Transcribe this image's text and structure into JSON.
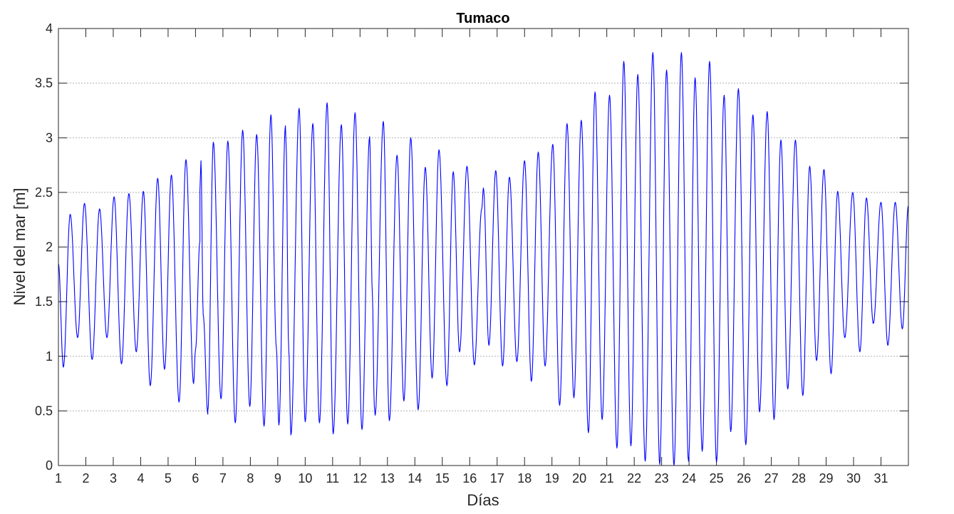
{
  "chart_data": {
    "type": "line",
    "title": "Tumaco",
    "xlabel": "Días",
    "ylabel": "Nivel del mar [m]",
    "xlim": [
      1,
      32
    ],
    "ylim": [
      0,
      4
    ],
    "x_ticks": [
      1,
      2,
      3,
      4,
      5,
      6,
      7,
      8,
      9,
      10,
      11,
      12,
      13,
      14,
      15,
      16,
      17,
      18,
      19,
      20,
      21,
      22,
      23,
      24,
      25,
      26,
      27,
      28,
      29,
      30,
      31
    ],
    "x_tick_labels": [
      "1",
      "2",
      "3",
      "4",
      "5",
      "6",
      "7",
      "8",
      "9",
      "10",
      "11",
      "12",
      "13",
      "14",
      "15",
      "16",
      "17",
      "18",
      "19",
      "20",
      "21",
      "22",
      "23",
      "24",
      "25",
      "26",
      "27",
      "28",
      "29",
      "30",
      "31"
    ],
    "y_ticks": [
      0,
      0.5,
      1,
      1.5,
      2,
      2.5,
      3,
      3.5,
      4
    ],
    "y_tick_labels": [
      "0",
      "0.5",
      "1",
      "1.5",
      "2",
      "2.5",
      "3",
      "3.5",
      "4"
    ],
    "grid": "horizontal-dotted",
    "line_color": "#0000ff",
    "series": [
      {
        "extrema": [
          [
            1.0,
            1.85
          ],
          [
            1.18,
            0.9
          ],
          [
            1.43,
            2.3
          ],
          [
            1.7,
            1.17
          ],
          [
            1.95,
            2.4
          ],
          [
            2.23,
            0.97
          ],
          [
            2.5,
            2.35
          ],
          [
            2.77,
            1.17
          ],
          [
            3.03,
            2.46
          ],
          [
            3.3,
            0.93
          ],
          [
            3.57,
            2.49
          ],
          [
            3.84,
            1.04
          ],
          [
            4.1,
            2.51
          ],
          [
            4.35,
            0.73
          ],
          [
            4.62,
            2.63
          ],
          [
            4.87,
            0.88
          ],
          [
            5.12,
            2.66
          ],
          [
            5.4,
            0.58
          ],
          [
            5.65,
            2.8
          ],
          [
            5.93,
            0.75
          ],
          [
            6.0,
            1.06
          ],
          [
            6.16,
            2.05
          ],
          [
            6.16,
            2.52
          ],
          [
            6.2,
            2.79
          ],
          [
            6.28,
            1.38
          ],
          [
            6.45,
            0.47
          ],
          [
            6.45,
            0.5
          ],
          [
            6.65,
            2.96
          ],
          [
            6.93,
            0.61
          ],
          [
            7.18,
            2.97
          ],
          [
            7.45,
            0.39
          ],
          [
            7.72,
            3.07
          ],
          [
            7.98,
            0.54
          ],
          [
            8.23,
            3.03
          ],
          [
            8.5,
            0.36
          ],
          [
            8.75,
            3.21
          ],
          [
            8.95,
            1.08
          ],
          [
            9.04,
            0.37
          ],
          [
            9.28,
            3.11
          ],
          [
            9.3,
            2.96
          ],
          [
            9.4,
            1.06
          ],
          [
            9.48,
            0.28
          ],
          [
            9.78,
            3.27
          ],
          [
            10.0,
            0.4
          ],
          [
            10.28,
            3.13
          ],
          [
            10.52,
            0.39
          ],
          [
            10.8,
            3.32
          ],
          [
            11.02,
            0.29
          ],
          [
            11.32,
            3.12
          ],
          [
            11.55,
            0.38
          ],
          [
            11.82,
            3.23
          ],
          [
            12.07,
            0.33
          ],
          [
            12.35,
            3.01
          ],
          [
            12.45,
            1.58
          ],
          [
            12.52,
            0.55
          ],
          [
            12.55,
            0.46
          ],
          [
            12.85,
            3.15
          ],
          [
            13.07,
            0.41
          ],
          [
            13.35,
            2.84
          ],
          [
            13.6,
            0.59
          ],
          [
            13.85,
            3.0
          ],
          [
            14.12,
            0.51
          ],
          [
            14.38,
            2.73
          ],
          [
            14.63,
            0.8
          ],
          [
            14.88,
            2.89
          ],
          [
            15.17,
            0.73
          ],
          [
            15.4,
            2.69
          ],
          [
            15.63,
            1.04
          ],
          [
            15.9,
            2.74
          ],
          [
            16.17,
            0.92
          ],
          [
            16.44,
            2.35
          ],
          [
            16.5,
            2.54
          ],
          [
            16.7,
            1.1
          ],
          [
            16.95,
            2.7
          ],
          [
            17.2,
            0.91
          ],
          [
            17.45,
            2.64
          ],
          [
            17.72,
            0.95
          ],
          [
            18.0,
            2.79
          ],
          [
            18.25,
            0.77
          ],
          [
            18.5,
            2.87
          ],
          [
            18.75,
            0.91
          ],
          [
            19.03,
            2.94
          ],
          [
            19.28,
            0.55
          ],
          [
            19.55,
            3.13
          ],
          [
            19.8,
            0.62
          ],
          [
            20.07,
            3.16
          ],
          [
            20.33,
            0.3
          ],
          [
            20.57,
            3.42
          ],
          [
            20.83,
            0.42
          ],
          [
            21.1,
            3.39
          ],
          [
            21.37,
            0.16
          ],
          [
            21.62,
            3.7
          ],
          [
            21.88,
            0.18
          ],
          [
            22.13,
            3.58
          ],
          [
            22.4,
            0.04
          ],
          [
            22.68,
            3.78
          ],
          [
            22.93,
            0.01
          ],
          [
            23.18,
            3.62
          ],
          [
            23.45,
            0.0
          ],
          [
            23.72,
            3.78
          ],
          [
            23.98,
            0.04
          ],
          [
            24.22,
            3.55
          ],
          [
            24.48,
            0.13
          ],
          [
            24.75,
            3.7
          ],
          [
            25.0,
            0.03
          ],
          [
            25.28,
            3.39
          ],
          [
            25.52,
            0.31
          ],
          [
            25.8,
            3.45
          ],
          [
            26.07,
            0.19
          ],
          [
            26.33,
            3.21
          ],
          [
            26.57,
            0.49
          ],
          [
            26.85,
            3.24
          ],
          [
            27.1,
            0.42
          ],
          [
            27.35,
            2.98
          ],
          [
            27.6,
            0.7
          ],
          [
            27.88,
            2.98
          ],
          [
            28.15,
            0.64
          ],
          [
            28.4,
            2.74
          ],
          [
            28.65,
            0.96
          ],
          [
            28.92,
            2.71
          ],
          [
            29.18,
            0.84
          ],
          [
            29.42,
            2.51
          ],
          [
            29.68,
            1.17
          ],
          [
            29.97,
            2.5
          ],
          [
            30.23,
            1.04
          ],
          [
            30.47,
            2.45
          ],
          [
            30.72,
            1.3
          ],
          [
            31.0,
            2.41
          ],
          [
            31.25,
            1.1
          ],
          [
            31.52,
            2.41
          ],
          [
            31.78,
            1.25
          ],
          [
            32.0,
            2.38
          ]
        ]
      }
    ]
  }
}
